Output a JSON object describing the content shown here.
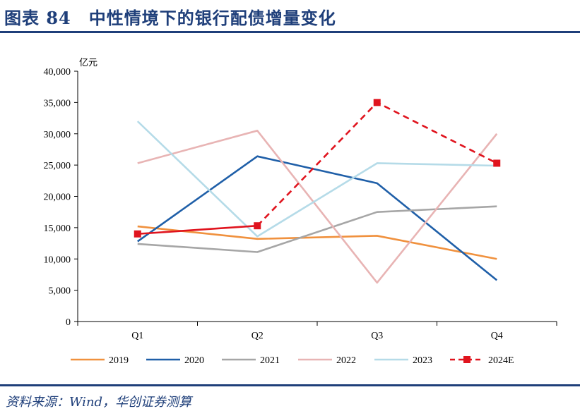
{
  "figure": {
    "title": "图表 84　中性情境下的银行配债增量变化",
    "source": "资料来源：Wind，华创证券测算"
  },
  "chart_data": {
    "type": "line",
    "ylabel": "亿元",
    "ylim": [
      0,
      40000
    ],
    "yticks": [
      0,
      5000,
      10000,
      15000,
      20000,
      25000,
      30000,
      35000,
      40000
    ],
    "ytick_labels": [
      "0",
      "5,000",
      "10,000",
      "15,000",
      "20,000",
      "25,000",
      "30,000",
      "35,000",
      "40,000"
    ],
    "categories": [
      "Q1",
      "Q2",
      "Q3",
      "Q4"
    ],
    "grid": false,
    "legend_position": "bottom",
    "series": [
      {
        "name": "2019",
        "color": "#f0913e",
        "dashed": false,
        "markers": false,
        "values": [
          15200,
          13200,
          13700,
          10000
        ]
      },
      {
        "name": "2020",
        "color": "#1f5fa8",
        "dashed": false,
        "markers": false,
        "values": [
          12800,
          26400,
          22100,
          6600
        ]
      },
      {
        "name": "2021",
        "color": "#a6a6a6",
        "dashed": false,
        "markers": false,
        "values": [
          12400,
          11100,
          17500,
          18400
        ]
      },
      {
        "name": "2022",
        "color": "#e8b4b4",
        "dashed": false,
        "markers": false,
        "values": [
          25300,
          30500,
          6200,
          30000
        ]
      },
      {
        "name": "2023",
        "color": "#b5dbe8",
        "dashed": false,
        "markers": false,
        "values": [
          32000,
          13600,
          25300,
          24900
        ]
      },
      {
        "name": "2024E",
        "color": "#e0141e",
        "dashed": true,
        "markers": true,
        "solid_until_index": 1,
        "values": [
          14000,
          15300,
          35000,
          25300
        ]
      }
    ]
  }
}
